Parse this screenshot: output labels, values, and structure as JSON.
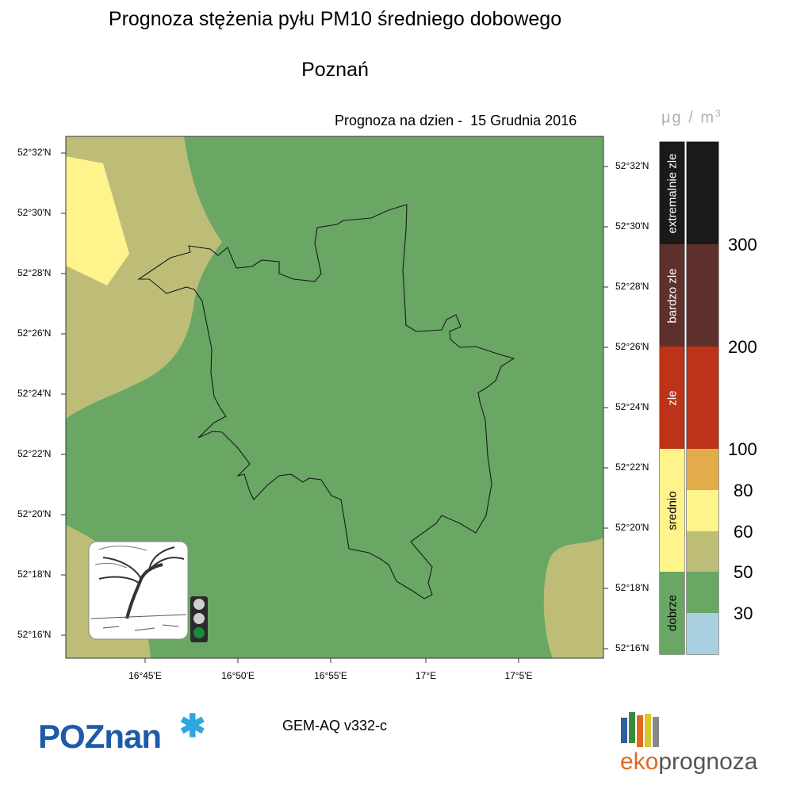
{
  "title": "Prognoza stężenia pyłu PM10 średniego dobowego",
  "city": "Poznań",
  "forecast_date": "Prognoza na dzien -  15 Grudnia 2016",
  "unit": {
    "base": "μg / m",
    "exp": "3"
  },
  "axes": {
    "lat_left": [
      "52°32'N",
      "52°30'N",
      "52°28'N",
      "52°26'N",
      "52°24'N",
      "52°22'N",
      "52°20'N",
      "52°18'N",
      "52°16'N"
    ],
    "lat_right": [
      "52°32'N",
      "52°30'N",
      "52°28'N",
      "52°26'N",
      "52°24'N",
      "52°22'N",
      "52°20'N",
      "52°18'N",
      "52°16'N"
    ],
    "lon": [
      "16°45'E",
      "16°50'E",
      "16°55'E",
      "17°E",
      "17°5'E"
    ]
  },
  "legend": {
    "categories": [
      {
        "label": "extremalnie zle",
        "color": "#1a1a18"
      },
      {
        "label": "bardzo zle",
        "color": "#5e302b"
      },
      {
        "label": "zle",
        "color": "#bd3219"
      },
      {
        "label": "srednio",
        "color": "#fff38c"
      },
      {
        "label": "dobrze",
        "color": "#6aa765"
      }
    ],
    "swatches": [
      "#1a1a18",
      "#5e302b",
      "#bd3219",
      "#e2ac4b",
      "#fff38c",
      "#bebd78",
      "#6aa765",
      "#a8d0e0"
    ],
    "ticks": [
      "300",
      "200",
      "100",
      "80",
      "60",
      "50",
      "30"
    ]
  },
  "map_colors": {
    "good": "#6aa765",
    "moderate": "#bebd78",
    "yellow": "#fff38c"
  },
  "icons": {
    "weather": "wind-tree-icon",
    "traffic": "traffic-light-icon"
  },
  "model": "GEM-AQ v332-c",
  "logos": {
    "poznan": "POZnan",
    "eko_a": "eko",
    "eko_b": "prognoza"
  }
}
